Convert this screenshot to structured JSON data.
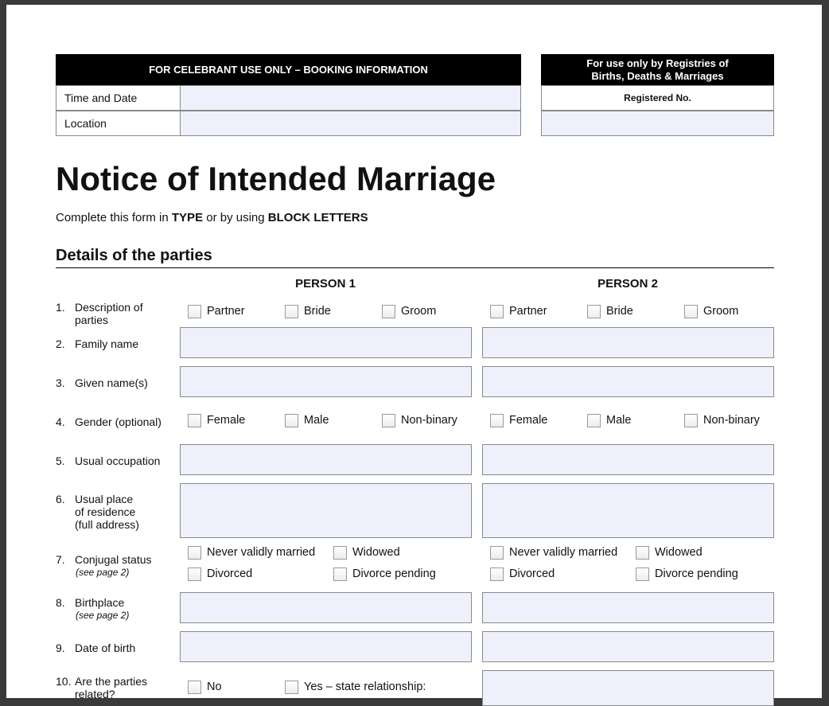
{
  "booking": {
    "title": "FOR CELEBRANT USE ONLY – BOOKING INFORMATION",
    "rows": [
      "Time and Date",
      "Location"
    ]
  },
  "registry": {
    "title": [
      "For use only by Registries of",
      "Births, Deaths & Marriages"
    ],
    "label": "Registered No."
  },
  "heading": "Notice of Intended Marriage",
  "instruction": [
    "Complete this form in ",
    "TYPE",
    " or by using ",
    "BLOCK LETTERS"
  ],
  "section": "Details of the parties",
  "columns": [
    "PERSON 1",
    "PERSON 2"
  ],
  "questions": [
    {
      "number": "1.",
      "label": [
        "Description of",
        "parties"
      ],
      "options": [
        "Partner",
        "Bride",
        "Groom"
      ]
    },
    {
      "number": "2.",
      "label": [
        "Family name"
      ]
    },
    {
      "number": "3.",
      "label": [
        "Given name(s)"
      ]
    },
    {
      "number": "4.",
      "label": [
        "Gender (optional)"
      ],
      "options": [
        "Female",
        "Male",
        "Non-binary"
      ]
    },
    {
      "number": "5.",
      "label": [
        "Usual occupation"
      ]
    },
    {
      "number": "6.",
      "label": [
        "Usual place",
        "of residence",
        "(full address)"
      ]
    },
    {
      "number": "7.",
      "label": [
        "Conjugal status"
      ],
      "note": "(see page 2)",
      "options": [
        "Never validly married",
        "Widowed",
        "Divorced",
        "Divorce pending"
      ]
    },
    {
      "number": "8.",
      "label": [
        "Birthplace"
      ],
      "note": "(see page 2)"
    },
    {
      "number": "9.",
      "label": [
        "Date of birth"
      ]
    },
    {
      "number": "10.",
      "label": [
        "Are the parties",
        "related?"
      ],
      "options": [
        "No",
        "Yes – state relationship:"
      ]
    }
  ]
}
